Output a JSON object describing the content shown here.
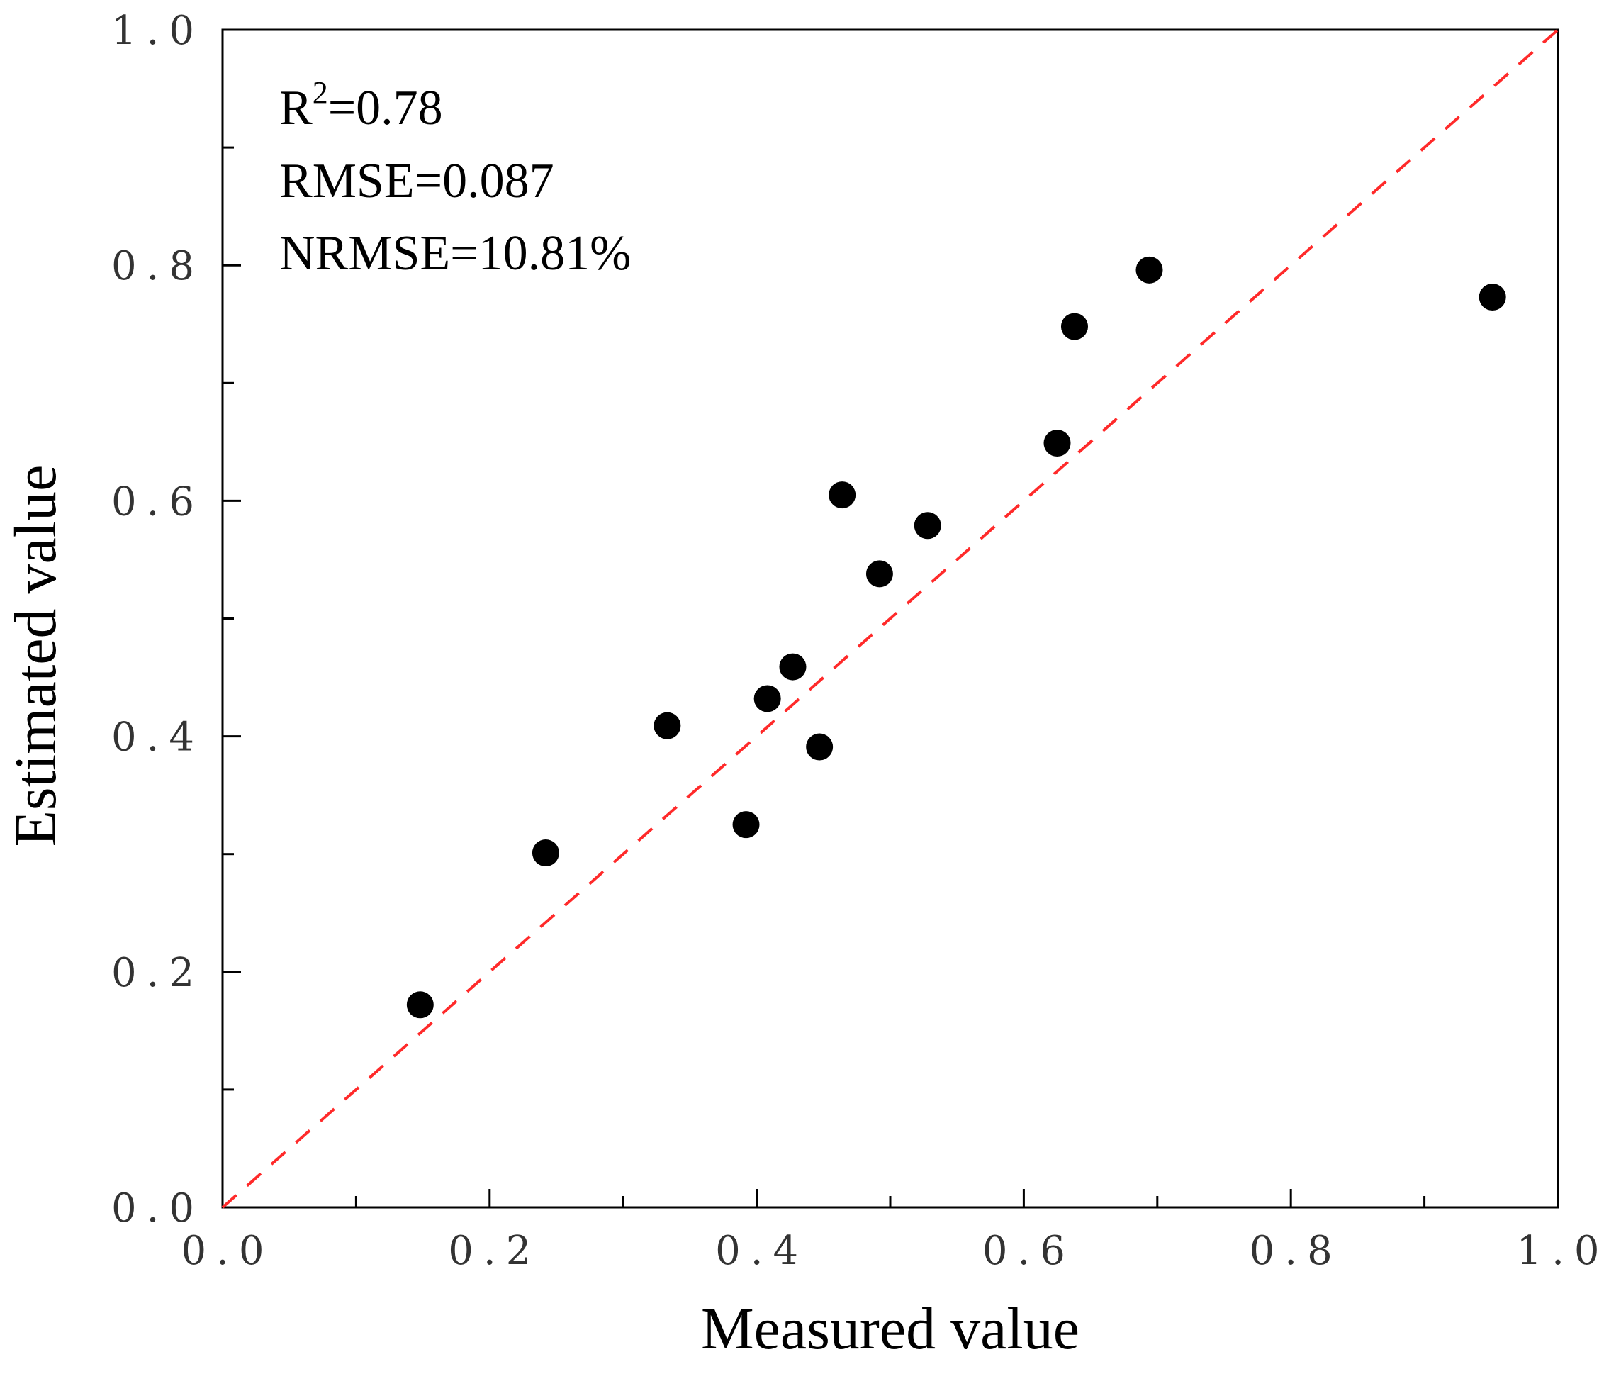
{
  "chart_data": {
    "type": "scatter",
    "title": "",
    "xlabel": "Measured value",
    "ylabel": "Estimated value",
    "xlim": [
      0,
      1
    ],
    "ylim": [
      0,
      1
    ],
    "x_ticks": [
      "0.0",
      "0.2",
      "0.4",
      "0.6",
      "0.8",
      "1.0"
    ],
    "y_ticks": [
      "0.0",
      "0.2",
      "0.4",
      "0.6",
      "0.8",
      "1.0"
    ],
    "grid": false,
    "reference_line": {
      "style": "dashed",
      "color": "#ff2a2a",
      "from": [
        0,
        0
      ],
      "to": [
        1,
        1
      ]
    },
    "annotations": {
      "r2_label": "R",
      "r2_sup": "2",
      "r2_value": "=0.78",
      "rmse": "RMSE=0.087",
      "nrmse": "NRMSE=10.81%"
    },
    "marker_color": "#000000",
    "points": [
      {
        "x": 0.148,
        "y": 0.172
      },
      {
        "x": 0.242,
        "y": 0.301
      },
      {
        "x": 0.333,
        "y": 0.409
      },
      {
        "x": 0.392,
        "y": 0.325
      },
      {
        "x": 0.408,
        "y": 0.432
      },
      {
        "x": 0.427,
        "y": 0.459
      },
      {
        "x": 0.447,
        "y": 0.391
      },
      {
        "x": 0.464,
        "y": 0.605
      },
      {
        "x": 0.492,
        "y": 0.538
      },
      {
        "x": 0.528,
        "y": 0.579
      },
      {
        "x": 0.625,
        "y": 0.649
      },
      {
        "x": 0.638,
        "y": 0.748
      },
      {
        "x": 0.694,
        "y": 0.796
      },
      {
        "x": 0.951,
        "y": 0.773
      }
    ]
  }
}
